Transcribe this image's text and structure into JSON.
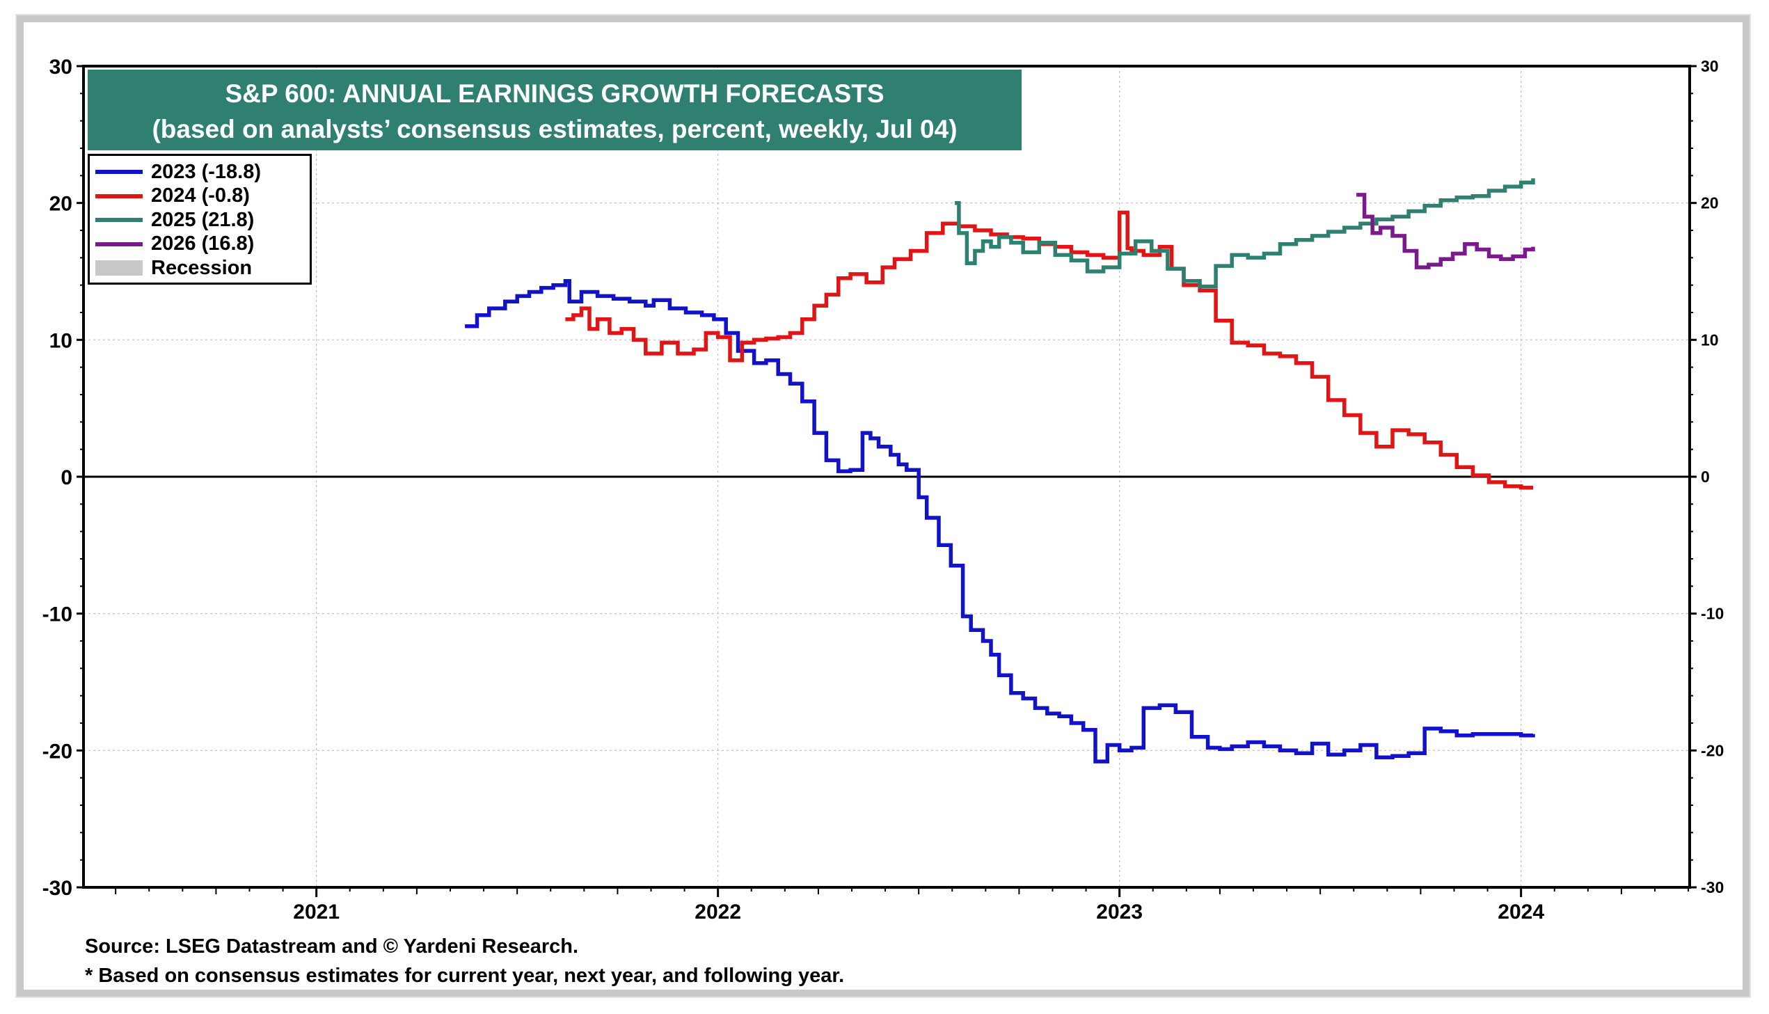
{
  "chart_data": {
    "type": "line",
    "title": "S&P 600: ANNUAL EARNINGS GROWTH FORECASTS",
    "subtitle": "(based on analysts’ consensus estimates, percent, weekly, Jul 04)",
    "ylim": [
      -30,
      30
    ],
    "yticks": [
      30,
      20,
      10,
      0,
      -10,
      -20,
      -30
    ],
    "xlim": [
      2020.42,
      2024.42
    ],
    "xticks": [
      "2021",
      "2022",
      "2023",
      "2024"
    ],
    "grid": true,
    "legend_position": "top-left",
    "colors": {
      "2023": "#1212c8",
      "2024": "#e01616",
      "2025": "#2f8070",
      "2026": "#7a1a8c",
      "recession": "#c8c8c8"
    },
    "series": [
      {
        "name": "2023 (-18.8)",
        "color": "#1212c8",
        "x": [
          2021.37,
          2021.4,
          2021.43,
          2021.47,
          2021.5,
          2021.53,
          2021.56,
          2021.59,
          2021.62,
          2021.63,
          2021.66,
          2021.7,
          2021.74,
          2021.78,
          2021.82,
          2021.84,
          2021.88,
          2021.92,
          2021.96,
          2021.99,
          2022.02,
          2022.05,
          2022.09,
          2022.12,
          2022.15,
          2022.18,
          2022.21,
          2022.24,
          2022.27,
          2022.3,
          2022.33,
          2022.36,
          2022.38,
          2022.4,
          2022.43,
          2022.45,
          2022.47,
          2022.5,
          2022.52,
          2022.55,
          2022.58,
          2022.61,
          2022.63,
          2022.66,
          2022.68,
          2022.7,
          2022.73,
          2022.76,
          2022.79,
          2022.82,
          2022.85,
          2022.88,
          2022.91,
          2022.94,
          2022.97,
          2023.0,
          2023.03,
          2023.06,
          2023.1,
          2023.14,
          2023.18,
          2023.22,
          2023.25,
          2023.28,
          2023.32,
          2023.36,
          2023.4,
          2023.44,
          2023.48,
          2023.52,
          2023.56,
          2023.6,
          2023.64,
          2023.68,
          2023.72,
          2023.76,
          2023.8,
          2023.84,
          2023.88,
          2023.92,
          2023.96,
          2024.0,
          2024.03
        ],
        "y": [
          11.0,
          11.8,
          12.3,
          12.8,
          13.2,
          13.5,
          13.8,
          14.0,
          14.3,
          12.8,
          13.5,
          13.2,
          13.0,
          12.8,
          12.5,
          12.9,
          12.3,
          12.0,
          11.8,
          11.5,
          10.5,
          9.2,
          8.3,
          8.5,
          7.5,
          6.8,
          5.5,
          3.2,
          1.2,
          0.4,
          0.5,
          3.2,
          2.8,
          2.2,
          1.6,
          0.9,
          0.5,
          -1.5,
          -3.0,
          -5.0,
          -6.5,
          -10.2,
          -11.2,
          -12.0,
          -13.0,
          -14.5,
          -15.8,
          -16.2,
          -16.9,
          -17.3,
          -17.5,
          -18.0,
          -18.5,
          -20.8,
          -19.6,
          -20.0,
          -19.8,
          -16.9,
          -16.7,
          -17.2,
          -19.0,
          -19.8,
          -19.9,
          -19.7,
          -19.4,
          -19.7,
          -20.0,
          -20.2,
          -19.5,
          -20.3,
          -20.0,
          -19.6,
          -20.5,
          -20.4,
          -20.2,
          -18.4,
          -18.6,
          -18.9,
          -18.8,
          -18.8,
          -18.8,
          -18.9,
          -18.8
        ]
      },
      {
        "name": "2024 (-0.8)",
        "color": "#e01616",
        "x": [
          2021.62,
          2021.64,
          2021.66,
          2021.68,
          2021.7,
          2021.73,
          2021.76,
          2021.79,
          2021.82,
          2021.86,
          2021.9,
          2021.94,
          2021.97,
          2022.0,
          2022.03,
          2022.06,
          2022.09,
          2022.12,
          2022.15,
          2022.18,
          2022.21,
          2022.24,
          2022.27,
          2022.3,
          2022.33,
          2022.37,
          2022.41,
          2022.44,
          2022.48,
          2022.52,
          2022.56,
          2022.6,
          2022.64,
          2022.68,
          2022.72,
          2022.76,
          2022.8,
          2022.84,
          2022.88,
          2022.92,
          2022.96,
          2023.0,
          2023.02,
          2023.03,
          2023.06,
          2023.1,
          2023.13,
          2023.16,
          2023.2,
          2023.24,
          2023.28,
          2023.32,
          2023.36,
          2023.4,
          2023.44,
          2023.48,
          2023.52,
          2023.56,
          2023.6,
          2023.64,
          2023.68,
          2023.72,
          2023.76,
          2023.8,
          2023.84,
          2023.88,
          2023.92,
          2023.96,
          2024.0,
          2024.03
        ],
        "y": [
          11.5,
          11.8,
          12.3,
          10.8,
          11.5,
          10.5,
          10.8,
          10.0,
          9.0,
          9.8,
          9.0,
          9.3,
          10.5,
          10.2,
          8.5,
          9.8,
          10.0,
          10.1,
          10.2,
          10.5,
          11.5,
          12.5,
          13.3,
          14.5,
          14.8,
          14.2,
          15.3,
          15.9,
          16.5,
          17.8,
          18.5,
          18.3,
          18.0,
          17.7,
          17.5,
          17.4,
          17.0,
          16.8,
          16.4,
          16.2,
          16.0,
          19.3,
          16.7,
          16.5,
          16.2,
          16.8,
          15.2,
          14.0,
          13.6,
          11.4,
          9.8,
          9.6,
          9.0,
          8.8,
          8.3,
          7.3,
          5.6,
          4.5,
          3.2,
          2.2,
          3.4,
          3.1,
          2.5,
          1.6,
          0.7,
          0.1,
          -0.4,
          -0.7,
          -0.8,
          -0.8
        ]
      },
      {
        "name": "2025 (21.8)",
        "color": "#2f8070",
        "x": [
          2022.59,
          2022.6,
          2022.62,
          2022.64,
          2022.66,
          2022.68,
          2022.7,
          2022.73,
          2022.76,
          2022.8,
          2022.84,
          2022.88,
          2022.92,
          2022.96,
          2023.0,
          2023.04,
          2023.08,
          2023.12,
          2023.16,
          2023.2,
          2023.24,
          2023.28,
          2023.32,
          2023.36,
          2023.4,
          2023.44,
          2023.48,
          2023.52,
          2023.56,
          2023.6,
          2023.64,
          2023.68,
          2023.72,
          2023.76,
          2023.8,
          2023.84,
          2023.88,
          2023.92,
          2023.96,
          2024.0,
          2024.03
        ],
        "y": [
          20.0,
          17.8,
          15.6,
          16.5,
          17.2,
          16.8,
          17.5,
          17.1,
          16.4,
          17.1,
          16.2,
          15.8,
          15.0,
          15.3,
          16.3,
          17.2,
          16.5,
          15.2,
          14.3,
          13.9,
          15.4,
          16.2,
          16.0,
          16.3,
          17.0,
          17.3,
          17.6,
          17.9,
          18.2,
          18.5,
          18.8,
          19.0,
          19.4,
          19.8,
          20.2,
          20.4,
          20.5,
          20.9,
          21.2,
          21.5,
          21.8
        ]
      },
      {
        "name": "2026 (16.8)",
        "color": "#7a1a8c",
        "x": [
          2023.59,
          2023.61,
          2023.63,
          2023.65,
          2023.68,
          2023.71,
          2023.74,
          2023.77,
          2023.8,
          2023.83,
          2023.86,
          2023.89,
          2023.92,
          2023.95,
          2023.98,
          2024.01,
          2024.03
        ],
        "y": [
          20.6,
          19.0,
          17.8,
          18.2,
          17.6,
          16.5,
          15.3,
          15.5,
          15.9,
          16.3,
          17.0,
          16.6,
          16.1,
          15.9,
          16.1,
          16.6,
          16.8
        ]
      }
    ],
    "recession": {
      "label": "Recession"
    }
  },
  "footnotes": {
    "source": "Source: LSEG Datastream and © Yardeni Research.",
    "note": "* Based on consensus estimates for current year, next year, and following year."
  }
}
